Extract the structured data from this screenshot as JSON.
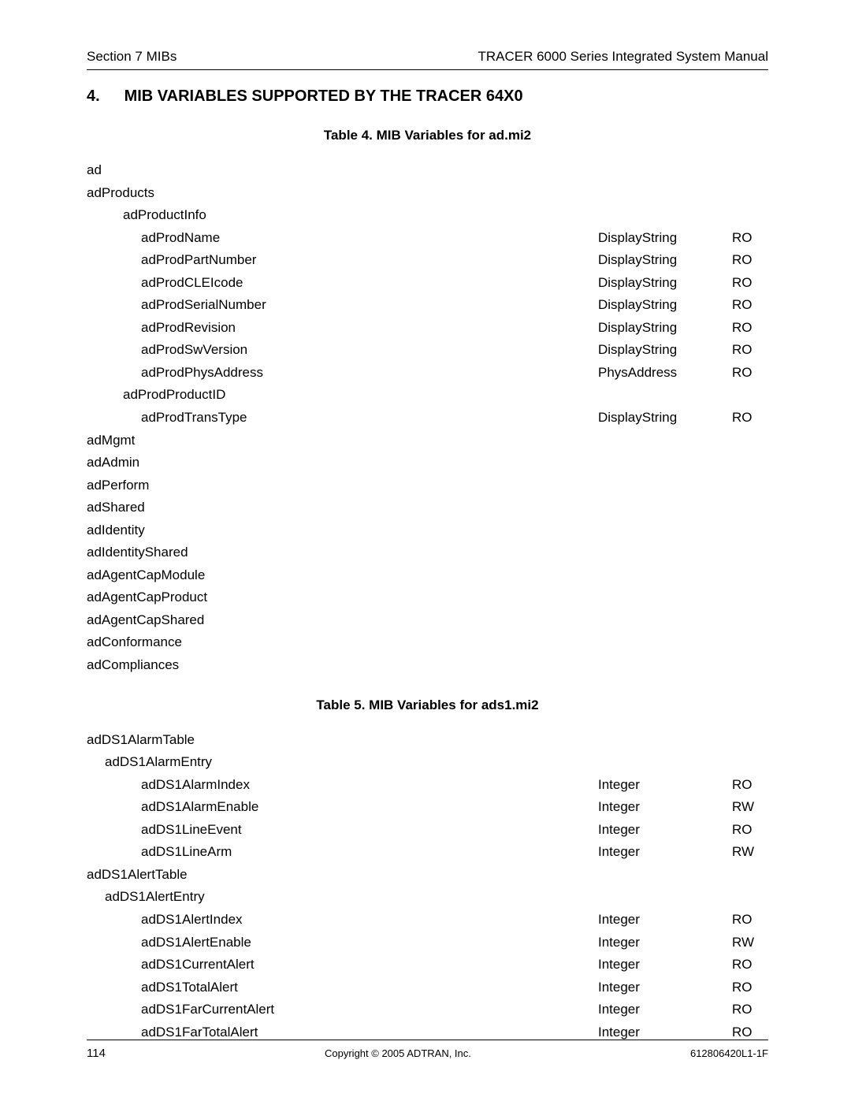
{
  "header": {
    "left": "Section 7  MIBs",
    "right": "TRACER 6000 Series Integrated System Manual"
  },
  "section": {
    "number": "4.",
    "title": "MIB VARIABLES SUPPORTED BY THE TRACER 64X0"
  },
  "table4": {
    "caption": "Table 4.  MIB Variables for ad.mi2",
    "rows": [
      {
        "indent": 0,
        "name": "ad",
        "type": "",
        "access": ""
      },
      {
        "indent": 0,
        "name": "adProducts",
        "type": "",
        "access": ""
      },
      {
        "indent": 2,
        "name": "adProductInfo",
        "type": "",
        "access": ""
      },
      {
        "indent": 3,
        "name": "adProdName",
        "type": "DisplayString",
        "access": "RO"
      },
      {
        "indent": 3,
        "name": "adProdPartNumber",
        "type": "DisplayString",
        "access": "RO"
      },
      {
        "indent": 3,
        "name": "adProdCLEIcode",
        "type": "DisplayString",
        "access": "RO"
      },
      {
        "indent": 3,
        "name": "adProdSerialNumber",
        "type": "DisplayString",
        "access": "RO"
      },
      {
        "indent": 3,
        "name": "adProdRevision",
        "type": "DisplayString",
        "access": "RO"
      },
      {
        "indent": 3,
        "name": "adProdSwVersion",
        "type": "DisplayString",
        "access": "RO"
      },
      {
        "indent": 3,
        "name": "adProdPhysAddress",
        "type": "PhysAddress",
        "access": "RO"
      },
      {
        "indent": 2,
        "name": "adProdProductID",
        "type": "",
        "access": ""
      },
      {
        "indent": 3,
        "name": "adProdTransType",
        "type": "DisplayString",
        "access": "RO"
      },
      {
        "indent": 0,
        "name": "adMgmt",
        "type": "",
        "access": ""
      },
      {
        "indent": 0,
        "name": "adAdmin",
        "type": "",
        "access": ""
      },
      {
        "indent": 0,
        "name": "adPerform",
        "type": "",
        "access": ""
      },
      {
        "indent": 0,
        "name": "adShared",
        "type": "",
        "access": ""
      },
      {
        "indent": 0,
        "name": "adIdentity",
        "type": "",
        "access": ""
      },
      {
        "indent": 0,
        "name": "adIdentityShared",
        "type": "",
        "access": ""
      },
      {
        "indent": 0,
        "name": "adAgentCapModule",
        "type": "",
        "access": ""
      },
      {
        "indent": 0,
        "name": "adAgentCapProduct",
        "type": "",
        "access": ""
      },
      {
        "indent": 0,
        "name": "adAgentCapShared",
        "type": "",
        "access": ""
      },
      {
        "indent": 0,
        "name": "adConformance",
        "type": "",
        "access": ""
      },
      {
        "indent": 0,
        "name": "adCompliances",
        "type": "",
        "access": ""
      }
    ]
  },
  "table5": {
    "caption": "Table 5.  MIB Variables for ads1.mi2",
    "rows": [
      {
        "indent": 0,
        "name": "adDS1AlarmTable",
        "type": "",
        "access": ""
      },
      {
        "indent": 1,
        "name": "adDS1AlarmEntry",
        "type": "",
        "access": ""
      },
      {
        "indent": 3,
        "name": "adDS1AlarmIndex",
        "type": "Integer",
        "access": "RO"
      },
      {
        "indent": 3,
        "name": "adDS1AlarmEnable",
        "type": "Integer",
        "access": "RW"
      },
      {
        "indent": 3,
        "name": "adDS1LineEvent",
        "type": "Integer",
        "access": "RO"
      },
      {
        "indent": 3,
        "name": "adDS1LineArm",
        "type": "Integer",
        "access": "RW"
      },
      {
        "indent": 0,
        "name": "adDS1AlertTable",
        "type": "",
        "access": ""
      },
      {
        "indent": 1,
        "name": "adDS1AlertEntry",
        "type": "",
        "access": ""
      },
      {
        "indent": 3,
        "name": "adDS1AlertIndex",
        "type": "Integer",
        "access": "RO"
      },
      {
        "indent": 3,
        "name": "adDS1AlertEnable",
        "type": "Integer",
        "access": "RW"
      },
      {
        "indent": 3,
        "name": "adDS1CurrentAlert",
        "type": "Integer",
        "access": "RO"
      },
      {
        "indent": 3,
        "name": "adDS1TotalAlert",
        "type": "Integer",
        "access": "RO"
      },
      {
        "indent": 3,
        "name": "adDS1FarCurrentAlert",
        "type": "Integer",
        "access": "RO"
      },
      {
        "indent": 3,
        "name": "adDS1FarTotalAlert",
        "type": "Integer",
        "access": "RO"
      }
    ]
  },
  "footer": {
    "page": "114",
    "center": "Copyright © 2005 ADTRAN, Inc.",
    "right": "612806420L1-1F"
  }
}
